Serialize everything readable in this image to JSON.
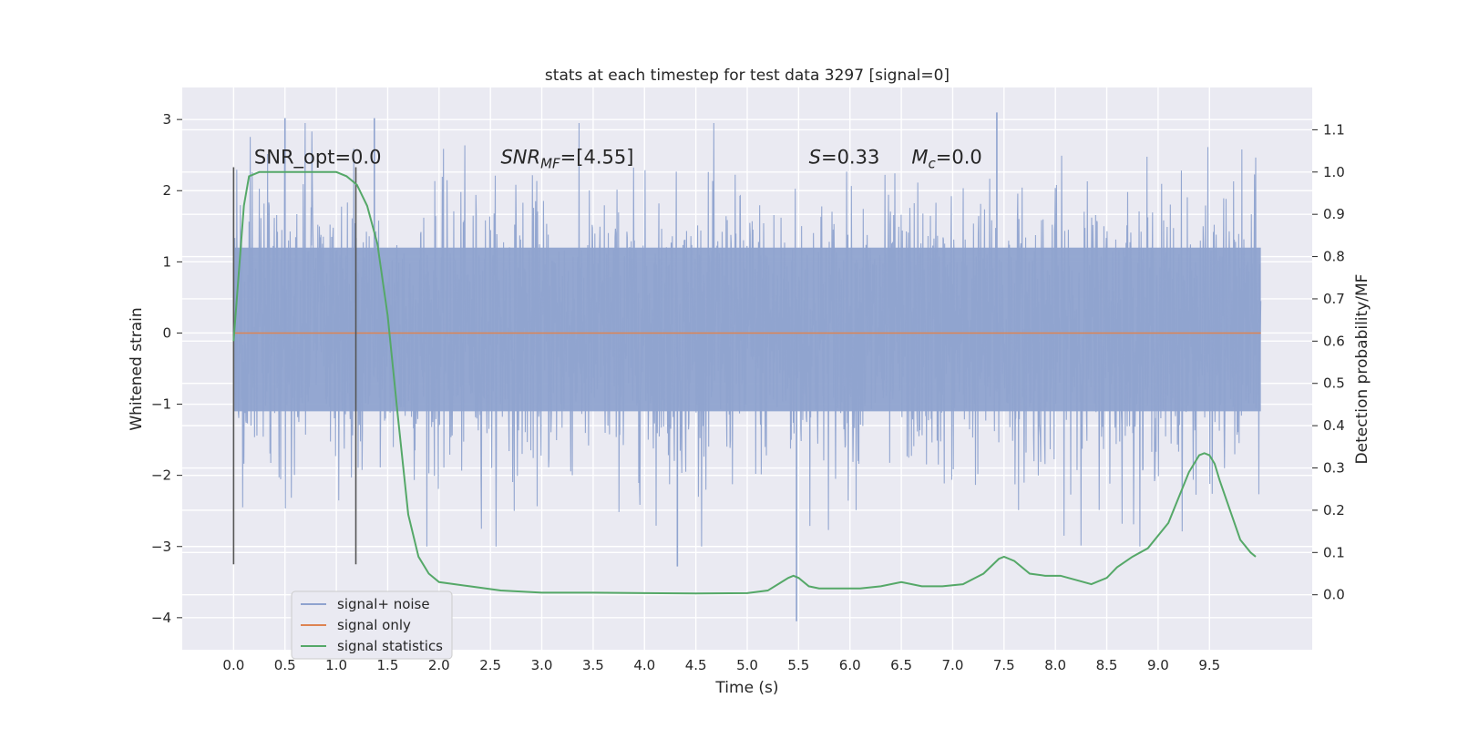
{
  "chart_data": {
    "type": "line",
    "title": "stats at each timestep for test data 3297 [signal=0]",
    "xlabel": "Time (s)",
    "ylabel": "Whitened strain",
    "y2label": "Detection probability/MF",
    "xlim": [
      -0.5,
      10.5
    ],
    "ylim": [
      -4.45,
      3.45
    ],
    "y2lim": [
      -0.13,
      1.2
    ],
    "xticks": [
      0.0,
      0.5,
      1.0,
      1.5,
      2.0,
      2.5,
      3.0,
      3.5,
      4.0,
      4.5,
      5.0,
      5.5,
      6.0,
      6.5,
      7.0,
      7.5,
      8.0,
      8.5,
      9.0,
      9.5
    ],
    "yticks": [
      3,
      2,
      1,
      0,
      -1,
      -2,
      -3,
      -4
    ],
    "y2ticks": [
      1.1,
      1.0,
      0.9,
      0.8,
      0.7,
      0.6,
      0.5,
      0.4,
      0.3,
      0.2,
      0.1,
      0.0
    ],
    "grid": true,
    "legend_position": "lower-left",
    "annotations": [
      {
        "text": "SNR_opt=0.0",
        "x": 0.2,
        "y": 2.38
      },
      {
        "text": "SNR_MF=[4.55]",
        "x": 2.6,
        "y": 2.38
      },
      {
        "text": "S=0.33",
        "x": 5.6,
        "y": 2.38
      },
      {
        "text": "M_c=0.0",
        "x": 6.6,
        "y": 2.38
      }
    ],
    "vertical_markers": [
      {
        "x": 0.0,
        "y_range": [
          -3.25,
          2.33
        ]
      },
      {
        "x": 1.19,
        "y_range": [
          -3.25,
          2.33
        ]
      }
    ],
    "series": [
      {
        "name": "signal+ noise",
        "axis": "left",
        "color": "#8fa3cf",
        "kind": "noise",
        "x_range": [
          0.0,
          10.0
        ],
        "envelope_band": [
          -1.1,
          1.2
        ],
        "max_spike": 3.1,
        "min_spike": -4.05,
        "notable_spikes": [
          {
            "x": 5.48,
            "y": -4.05
          },
          {
            "x": 7.43,
            "y": 3.1
          },
          {
            "x": 4.32,
            "y": -3.28
          },
          {
            "x": 0.5,
            "y": 3.02
          },
          {
            "x": 1.37,
            "y": 3.02
          }
        ]
      },
      {
        "name": "signal only",
        "axis": "left",
        "color": "#dd8452",
        "x": [
          0.0,
          10.0
        ],
        "values": [
          0.0,
          0.0
        ]
      },
      {
        "name": "signal statistics",
        "axis": "right",
        "color": "#55a868",
        "x": [
          0.0,
          0.1,
          0.15,
          0.25,
          0.35,
          0.5,
          0.7,
          0.9,
          1.0,
          1.1,
          1.2,
          1.3,
          1.4,
          1.5,
          1.6,
          1.7,
          1.8,
          1.9,
          2.0,
          2.3,
          2.6,
          3.0,
          3.5,
          4.0,
          4.5,
          5.0,
          5.2,
          5.3,
          5.4,
          5.45,
          5.5,
          5.6,
          5.7,
          5.9,
          6.1,
          6.3,
          6.5,
          6.7,
          6.9,
          7.1,
          7.3,
          7.45,
          7.5,
          7.6,
          7.75,
          7.9,
          8.05,
          8.2,
          8.35,
          8.5,
          8.6,
          8.75,
          8.9,
          9.0,
          9.1,
          9.2,
          9.3,
          9.4,
          9.45,
          9.5,
          9.55,
          9.6,
          9.7,
          9.8,
          9.9,
          9.95
        ],
        "values": [
          0.6,
          0.92,
          0.99,
          1.0,
          1.0,
          1.0,
          1.0,
          1.0,
          1.0,
          0.99,
          0.97,
          0.92,
          0.83,
          0.66,
          0.42,
          0.19,
          0.09,
          0.05,
          0.03,
          0.02,
          0.01,
          0.005,
          0.005,
          0.004,
          0.003,
          0.004,
          0.01,
          0.025,
          0.04,
          0.045,
          0.04,
          0.02,
          0.015,
          0.015,
          0.015,
          0.02,
          0.03,
          0.02,
          0.02,
          0.025,
          0.05,
          0.085,
          0.09,
          0.08,
          0.05,
          0.045,
          0.045,
          0.035,
          0.025,
          0.04,
          0.065,
          0.09,
          0.11,
          0.14,
          0.17,
          0.23,
          0.29,
          0.33,
          0.335,
          0.33,
          0.31,
          0.27,
          0.2,
          0.13,
          0.1,
          0.09
        ]
      }
    ],
    "legend": [
      {
        "label": "signal+ noise",
        "color": "#8fa3cf"
      },
      {
        "label": "signal only",
        "color": "#dd8452"
      },
      {
        "label": "signal statistics",
        "color": "#55a868"
      }
    ]
  }
}
